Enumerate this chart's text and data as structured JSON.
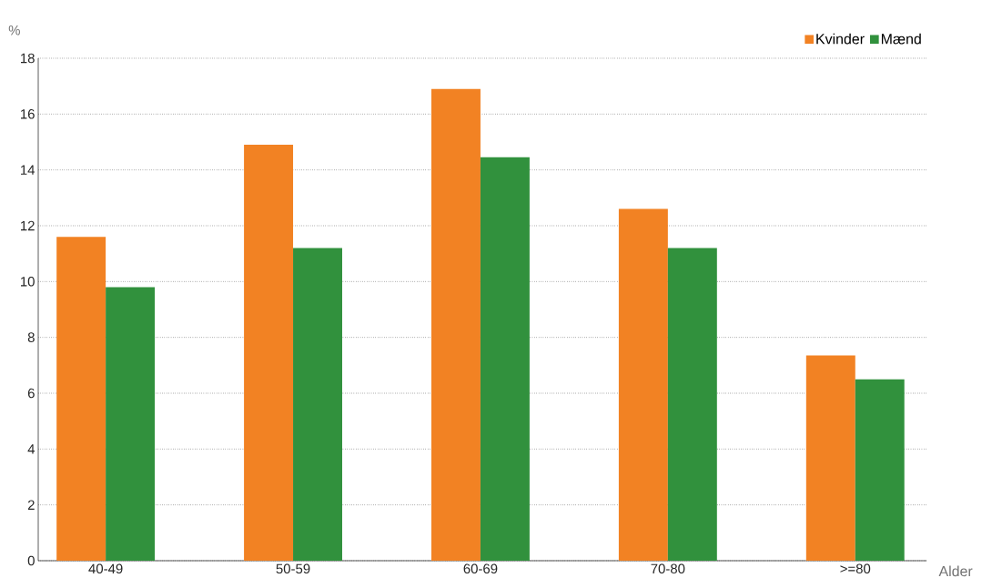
{
  "chart_data": {
    "type": "bar",
    "xlabel": "Alder",
    "ylabel": "%",
    "categories": [
      "40-49",
      "50-59",
      "60-69",
      "70-80",
      ">=80"
    ],
    "series": [
      {
        "name": "Kvinder",
        "color": "#f28223",
        "values": [
          11.6,
          14.9,
          16.9,
          12.6,
          7.35
        ]
      },
      {
        "name": "Mænd",
        "color": "#31913d",
        "values": [
          9.8,
          11.2,
          14.45,
          11.2,
          6.5
        ]
      }
    ],
    "ylim": [
      0,
      18
    ],
    "yticks": [
      0,
      2,
      4,
      6,
      8,
      10,
      12,
      14,
      16,
      18
    ],
    "grid": "y",
    "legend": "top right"
  }
}
